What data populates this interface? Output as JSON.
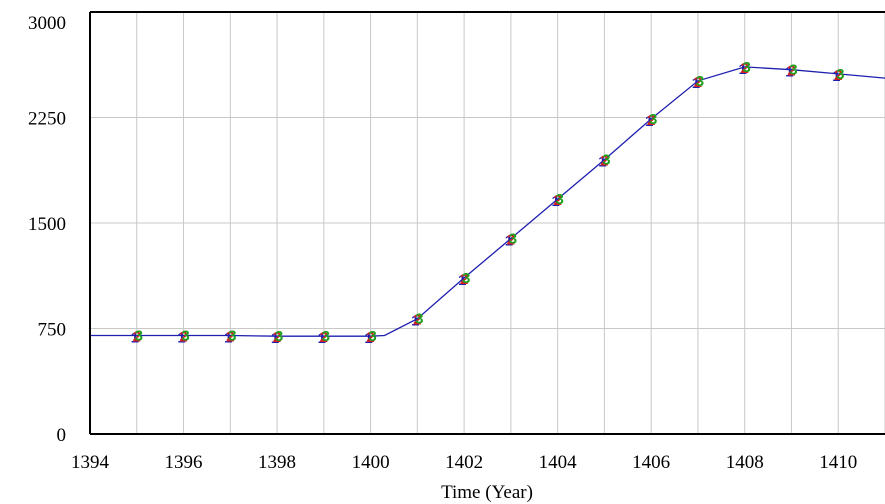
{
  "chart_data": {
    "type": "line",
    "title": "",
    "xlabel": "Time (Year)",
    "ylabel": "",
    "xlim": [
      1394,
      1411
    ],
    "ylim": [
      0,
      3000
    ],
    "x_ticks": [
      1394,
      1396,
      1398,
      1400,
      1402,
      1404,
      1406,
      1408,
      1410
    ],
    "y_ticks": [
      0,
      750,
      1500,
      2250,
      3000
    ],
    "grid": true,
    "line_color": "#1f1fb0",
    "series": [
      {
        "x": [
          1394,
          1395,
          1396,
          1397,
          1398,
          1399,
          1400,
          1400.3,
          1401,
          1402,
          1403,
          1404,
          1405,
          1406,
          1407,
          1408,
          1409,
          1410,
          1411
        ],
        "y": [
          700,
          700,
          700,
          700,
          695,
          695,
          695,
          700,
          820,
          1110,
          1390,
          1670,
          1950,
          2240,
          2510,
          2610,
          2590,
          2560,
          2530
        ]
      }
    ],
    "markers": {
      "labels": [
        "1",
        "2",
        "3"
      ],
      "colors": [
        "#1f1fb0",
        "#d42020",
        "#20a020"
      ],
      "x": [
        1395,
        1396,
        1397,
        1398,
        1399,
        1400,
        1401,
        1402,
        1403,
        1404,
        1405,
        1406,
        1407,
        1408,
        1409,
        1410
      ]
    }
  }
}
